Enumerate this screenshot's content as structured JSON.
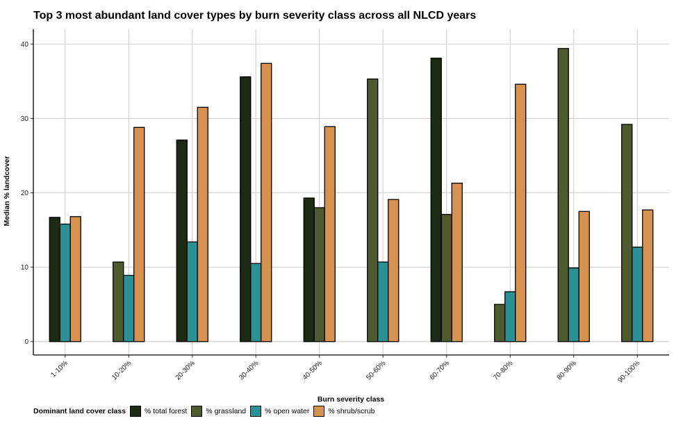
{
  "chart_data": {
    "type": "bar",
    "title": "Top 3 most abundant land cover types by burn severity class across all NLCD years",
    "xlabel": "Burn severity class",
    "ylabel": "Median % landcover",
    "ylim": [
      -1.8,
      42
    ],
    "yticks": [
      0,
      10,
      20,
      30,
      40
    ],
    "grid": true,
    "legend_position": "bottom-left",
    "legend_title": "Dominant land cover class",
    "categories": [
      "1-10%",
      "10-20%",
      "20-30%",
      "30-40%",
      "40-50%",
      "50-60%",
      "60-70%",
      "70-80%",
      "80-90%",
      "90-100%"
    ],
    "series": [
      {
        "name": "% total forest",
        "color": "#1f2a15",
        "values": [
          16.7,
          null,
          27.1,
          35.6,
          19.3,
          null,
          38.1,
          null,
          null,
          null
        ]
      },
      {
        "name": "% grassland",
        "color": "#4f5b2f",
        "values": [
          null,
          10.7,
          null,
          null,
          18.0,
          35.3,
          17.1,
          5.0,
          39.4,
          29.2
        ]
      },
      {
        "name": "% open water",
        "color": "#2a9196",
        "values": [
          15.8,
          8.9,
          13.4,
          10.5,
          null,
          10.7,
          null,
          6.7,
          9.9,
          12.7
        ]
      },
      {
        "name": "% shrub/scrub",
        "color": "#d8924f",
        "values": [
          16.8,
          28.8,
          31.5,
          37.4,
          28.9,
          19.1,
          21.3,
          34.6,
          17.5,
          17.7
        ]
      }
    ]
  }
}
